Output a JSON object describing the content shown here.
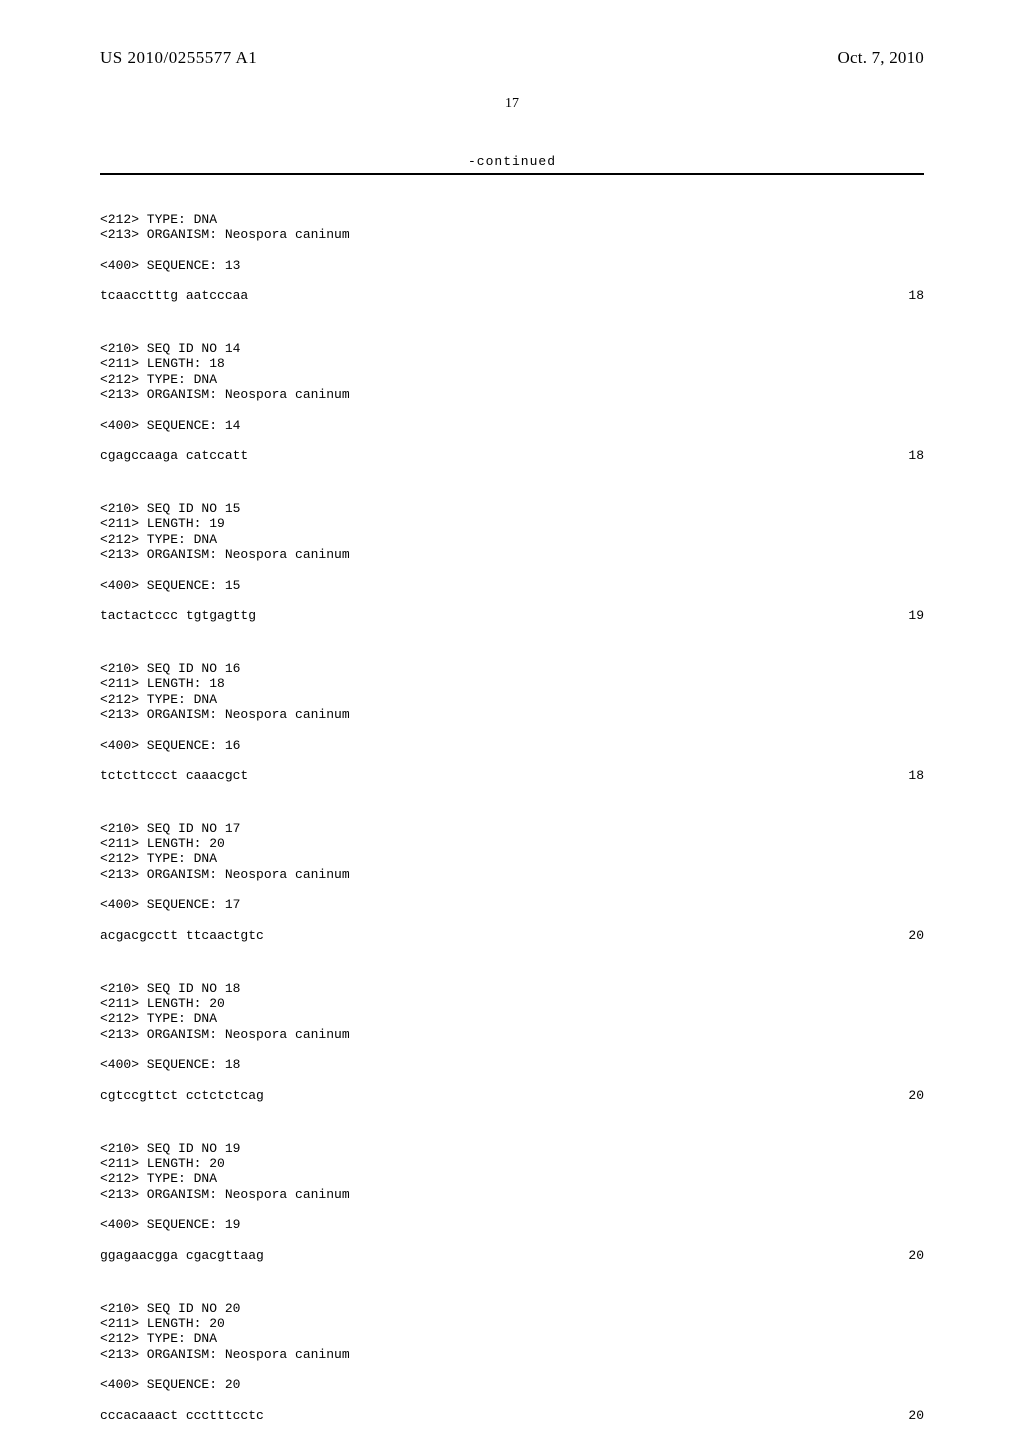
{
  "header": {
    "publication_number": "US 2010/0255577 A1",
    "publication_date": "Oct. 7, 2010"
  },
  "page_number": "17",
  "continued_label": "-continued",
  "entries": [
    {
      "meta": [
        "<212> TYPE: DNA",
        "<213> ORGANISM: Neospora caninum"
      ],
      "seq_header": "<400> SEQUENCE: 13",
      "sequence": "tcaacctttg aatcccaa",
      "length": "18"
    },
    {
      "meta": [
        "<210> SEQ ID NO 14",
        "<211> LENGTH: 18",
        "<212> TYPE: DNA",
        "<213> ORGANISM: Neospora caninum"
      ],
      "seq_header": "<400> SEQUENCE: 14",
      "sequence": "cgagccaaga catccatt",
      "length": "18"
    },
    {
      "meta": [
        "<210> SEQ ID NO 15",
        "<211> LENGTH: 19",
        "<212> TYPE: DNA",
        "<213> ORGANISM: Neospora caninum"
      ],
      "seq_header": "<400> SEQUENCE: 15",
      "sequence": "tactactccc tgtgagttg",
      "length": "19"
    },
    {
      "meta": [
        "<210> SEQ ID NO 16",
        "<211> LENGTH: 18",
        "<212> TYPE: DNA",
        "<213> ORGANISM: Neospora caninum"
      ],
      "seq_header": "<400> SEQUENCE: 16",
      "sequence": "tctcttccct caaacgct",
      "length": "18"
    },
    {
      "meta": [
        "<210> SEQ ID NO 17",
        "<211> LENGTH: 20",
        "<212> TYPE: DNA",
        "<213> ORGANISM: Neospora caninum"
      ],
      "seq_header": "<400> SEQUENCE: 17",
      "sequence": "acgacgcctt ttcaactgtc",
      "length": "20"
    },
    {
      "meta": [
        "<210> SEQ ID NO 18",
        "<211> LENGTH: 20",
        "<212> TYPE: DNA",
        "<213> ORGANISM: Neospora caninum"
      ],
      "seq_header": "<400> SEQUENCE: 18",
      "sequence": "cgtccgttct cctctctcag",
      "length": "20"
    },
    {
      "meta": [
        "<210> SEQ ID NO 19",
        "<211> LENGTH: 20",
        "<212> TYPE: DNA",
        "<213> ORGANISM: Neospora caninum"
      ],
      "seq_header": "<400> SEQUENCE: 19",
      "sequence": "ggagaacgga cgacgttaag",
      "length": "20"
    },
    {
      "meta": [
        "<210> SEQ ID NO 20",
        "<211> LENGTH: 20",
        "<212> TYPE: DNA",
        "<213> ORGANISM: Neospora caninum"
      ],
      "seq_header": "<400> SEQUENCE: 20",
      "sequence": "cccacaaact ccctttcctc",
      "length": "20"
    }
  ]
}
